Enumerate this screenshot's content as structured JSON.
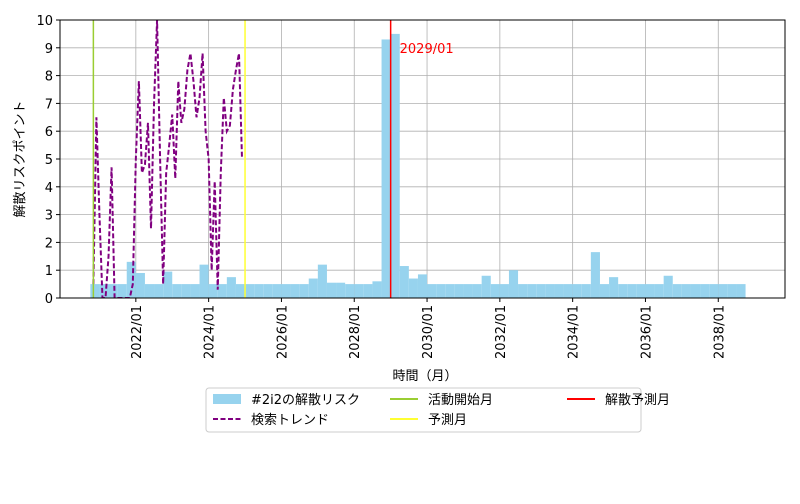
{
  "chart_data": {
    "type": "bar",
    "xlabel": "時間（月）",
    "ylabel": "解散リスクポイント",
    "xlim": [
      "2019/12",
      "2039/11"
    ],
    "xticks": [
      "2022/01",
      "2024/01",
      "2026/01",
      "2028/01",
      "2030/01",
      "2032/01",
      "2034/01",
      "2036/01",
      "2038/01"
    ],
    "ylim": [
      0,
      10
    ],
    "yticks": [
      0,
      1,
      2,
      3,
      4,
      5,
      6,
      7,
      8,
      9,
      10
    ],
    "grid": true,
    "series": [
      {
        "name": "#2i2の解散リスク",
        "type": "bar",
        "color": "#97d3ee",
        "months_per_bar": 3,
        "x": [
          "2020/10",
          "2021/01",
          "2021/04",
          "2021/07",
          "2021/10",
          "2022/01",
          "2022/04",
          "2022/07",
          "2022/10",
          "2023/01",
          "2023/04",
          "2023/07",
          "2023/10",
          "2024/01",
          "2024/04",
          "2024/07",
          "2024/10",
          "2025/01",
          "2025/04",
          "2025/07",
          "2025/10",
          "2026/01",
          "2026/04",
          "2026/07",
          "2026/10",
          "2027/01",
          "2027/04",
          "2027/07",
          "2027/10",
          "2028/01",
          "2028/04",
          "2028/07",
          "2028/10",
          "2029/01",
          "2029/04",
          "2029/07",
          "2029/10",
          "2030/01",
          "2030/04",
          "2030/07",
          "2030/10",
          "2031/01",
          "2031/04",
          "2031/07",
          "2031/10",
          "2032/01",
          "2032/04",
          "2032/07",
          "2032/10",
          "2033/01",
          "2033/04",
          "2033/07",
          "2033/10",
          "2034/01",
          "2034/04",
          "2034/07",
          "2034/10",
          "2035/01",
          "2035/04",
          "2035/07",
          "2035/10",
          "2036/01",
          "2036/04",
          "2036/07",
          "2036/10",
          "2037/01",
          "2037/04",
          "2037/07",
          "2037/10",
          "2038/01",
          "2038/04",
          "2038/07"
        ],
        "values": [
          0.5,
          0.5,
          0.5,
          0.5,
          1.3,
          0.9,
          0.5,
          0.5,
          0.95,
          0.5,
          0.5,
          0.5,
          1.2,
          0.5,
          0.5,
          0.75,
          0.5,
          0.5,
          0.5,
          0.5,
          0.5,
          0.5,
          0.5,
          0.5,
          0.7,
          1.2,
          0.55,
          0.55,
          0.5,
          0.5,
          0.5,
          0.6,
          9.3,
          9.5,
          1.15,
          0.7,
          0.85,
          0.5,
          0.5,
          0.5,
          0.5,
          0.5,
          0.5,
          0.8,
          0.5,
          0.5,
          1.0,
          0.5,
          0.5,
          0.5,
          0.5,
          0.5,
          0.5,
          0.5,
          0.5,
          1.65,
          0.5,
          0.75,
          0.5,
          0.5,
          0.5,
          0.5,
          0.5,
          0.8,
          0.5,
          0.5,
          0.5,
          0.5,
          0.5,
          0.5,
          0.5,
          0.5
        ]
      },
      {
        "name": "検索トレンド",
        "type": "line",
        "color": "#800080",
        "dashed": true,
        "x": [
          "2020/11",
          "2020/12",
          "2021/01",
          "2021/02",
          "2021/03",
          "2021/04",
          "2021/05",
          "2021/06",
          "2021/07",
          "2021/08",
          "2021/09",
          "2021/10",
          "2021/11",
          "2021/12",
          "2022/01",
          "2022/02",
          "2022/03",
          "2022/04",
          "2022/05",
          "2022/06",
          "2022/07",
          "2022/08",
          "2022/09",
          "2022/10",
          "2022/11",
          "2022/12",
          "2023/01",
          "2023/02",
          "2023/03",
          "2023/04",
          "2023/05",
          "2023/06",
          "2023/07",
          "2023/08",
          "2023/09",
          "2023/10",
          "2023/11",
          "2023/12",
          "2024/01",
          "2024/02",
          "2024/03",
          "2024/04",
          "2024/05",
          "2024/06",
          "2024/07",
          "2024/08",
          "2024/09",
          "2024/10",
          "2024/11",
          "2024/12"
        ],
        "values": [
          0.5,
          6.5,
          3.0,
          0,
          0,
          1.5,
          4.7,
          0,
          0,
          0,
          0,
          0,
          0,
          0.5,
          5.0,
          7.8,
          4.5,
          4.8,
          6.3,
          2.5,
          7.0,
          10,
          5.0,
          0.5,
          4.5,
          5.5,
          6.6,
          4.3,
          7.8,
          6.3,
          6.8,
          8.2,
          8.8,
          7.8,
          6.5,
          7.2,
          8.8,
          6.0,
          5.0,
          1.0,
          4.2,
          0.3,
          4.5,
          7.2,
          6.0,
          6.2,
          7.5,
          8.2,
          8.8,
          5.0
        ]
      }
    ],
    "vlines": [
      {
        "name": "活動開始月",
        "x": "2020/11",
        "color": "#9acd32"
      },
      {
        "name": "予測月",
        "x": "2025/01",
        "color": "#ffff33"
      },
      {
        "name": "解散予測月",
        "x": "2029/01",
        "color": "#ff0000"
      }
    ],
    "annotation": {
      "text": "2029/01",
      "x": "2029/01",
      "y": 9,
      "color": "#ff0000"
    }
  }
}
